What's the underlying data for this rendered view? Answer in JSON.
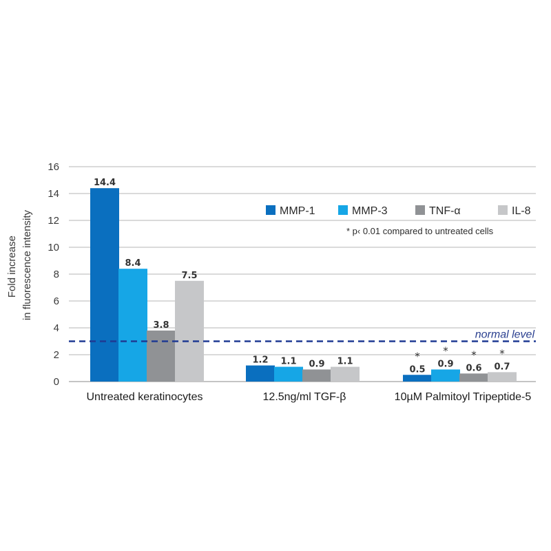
{
  "chart_data": {
    "type": "bar",
    "ylabel": [
      "Fold increase",
      "in fluorescence intensity"
    ],
    "ylim": [
      0,
      16
    ],
    "yticks": [
      0,
      2,
      4,
      6,
      8,
      10,
      12,
      14,
      16
    ],
    "grid": true,
    "legend_position": "top-right",
    "categories": [
      "Untreated keratinocytes",
      "12.5ng/ml TGF-β",
      "10µM Palmitoyl Tripeptide-5"
    ],
    "series": [
      {
        "name": "MMP-1",
        "color": "#0a6fbf",
        "values": [
          14.4,
          1.2,
          0.5
        ],
        "labels": [
          "14.4",
          "1.2",
          "0.5"
        ],
        "significant": [
          false,
          false,
          true
        ]
      },
      {
        "name": "MMP-3",
        "color": "#16a6e6",
        "values": [
          8.4,
          1.1,
          0.9
        ],
        "labels": [
          "8.4",
          "1.1",
          "0.9"
        ],
        "significant": [
          false,
          false,
          true
        ]
      },
      {
        "name": "TNF-α",
        "color": "#909295",
        "values": [
          3.8,
          0.9,
          0.6
        ],
        "labels": [
          "3.8",
          "0.9",
          "0.6"
        ],
        "significant": [
          false,
          false,
          true
        ]
      },
      {
        "name": "IL-8",
        "color": "#c6c7c9",
        "values": [
          7.5,
          1.1,
          0.7
        ],
        "labels": [
          "7.5",
          "1.1",
          "0.7"
        ],
        "significant": [
          false,
          false,
          true
        ]
      }
    ],
    "significance_marker": "*",
    "significance_note": "* p‹ 0.01  compared to untreated cells",
    "reference_line": {
      "value": 3,
      "label": "normal level",
      "color": "#1f3a93",
      "style": "dashed"
    }
  }
}
